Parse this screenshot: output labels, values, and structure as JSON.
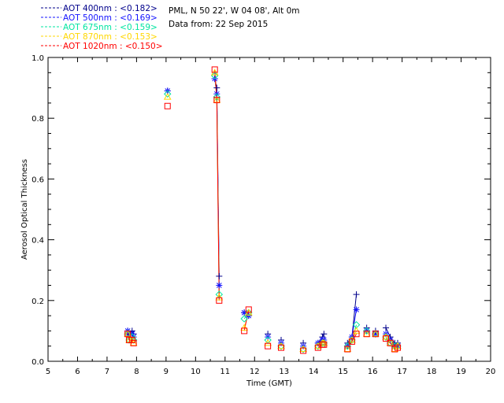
{
  "header": {
    "location": "PML, N 50 22', W 04 08', Alt 0m",
    "date_line": "Data from: 22 Sep 2015"
  },
  "legend": [
    {
      "label": "AOT  400nm : <0.182>",
      "color": "#00008b",
      "marker": "plus"
    },
    {
      "label": "AOT  500nm : <0.169>",
      "color": "#1414ff",
      "marker": "asterisk"
    },
    {
      "label": "AOT  675nm : <0.159>",
      "color": "#00e5a0",
      "marker": "diamond"
    },
    {
      "label": "AOT  870nm : <0.153>",
      "color": "#ffd700",
      "marker": "triangle"
    },
    {
      "label": "AOT 1020nm : <0.150>",
      "color": "#ff0000",
      "marker": "square"
    }
  ],
  "chart_data": {
    "type": "line",
    "title": "",
    "xlabel": "Time (GMT)",
    "ylabel": "Aerosol Optical Thickness",
    "xlim": [
      5,
      20
    ],
    "ylim": [
      0,
      1.0
    ],
    "x_ticks": [
      "5",
      "6",
      "7",
      "8",
      "9",
      "10",
      "11",
      "12",
      "13",
      "14",
      "15",
      "16",
      "17",
      "18",
      "19",
      "20"
    ],
    "y_ticks": [
      "0.0",
      "0.2",
      "0.4",
      "0.6",
      "0.8",
      "1.0"
    ],
    "grid": false,
    "series": [
      {
        "name": "AOT  400nm : <0.182>",
        "color": "#00008b",
        "points": [
          [
            7.7,
            0.1
          ],
          [
            7.75,
            0.09
          ],
          [
            7.85,
            0.1
          ],
          [
            7.9,
            0.09
          ],
          [
            9.05,
            0.89
          ],
          [
            10.65,
            0.93
          ],
          [
            10.72,
            0.9
          ],
          [
            10.8,
            0.28
          ],
          [
            11.65,
            0.16
          ],
          [
            11.8,
            0.15
          ],
          [
            12.45,
            0.09
          ],
          [
            12.9,
            0.07
          ],
          [
            13.65,
            0.06
          ],
          [
            14.15,
            0.06
          ],
          [
            14.3,
            0.08
          ],
          [
            14.35,
            0.09
          ],
          [
            15.15,
            0.06
          ],
          [
            15.3,
            0.08
          ],
          [
            15.45,
            0.22
          ],
          [
            15.8,
            0.11
          ],
          [
            16.1,
            0.1
          ],
          [
            16.45,
            0.11
          ],
          [
            16.6,
            0.08
          ],
          [
            16.75,
            0.06
          ],
          [
            16.85,
            0.06
          ]
        ]
      },
      {
        "name": "AOT  500nm : <0.169>",
        "color": "#1414ff",
        "points": [
          [
            7.7,
            0.1
          ],
          [
            7.75,
            0.08
          ],
          [
            7.85,
            0.09
          ],
          [
            7.9,
            0.08
          ],
          [
            9.05,
            0.89
          ],
          [
            10.65,
            0.93
          ],
          [
            10.72,
            0.88
          ],
          [
            10.8,
            0.25
          ],
          [
            11.65,
            0.16
          ],
          [
            11.8,
            0.15
          ],
          [
            12.45,
            0.08
          ],
          [
            12.9,
            0.06
          ],
          [
            13.65,
            0.05
          ],
          [
            14.15,
            0.06
          ],
          [
            14.3,
            0.07
          ],
          [
            14.35,
            0.07
          ],
          [
            15.15,
            0.05
          ],
          [
            15.3,
            0.08
          ],
          [
            15.45,
            0.17
          ],
          [
            15.8,
            0.1
          ],
          [
            16.1,
            0.09
          ],
          [
            16.45,
            0.09
          ],
          [
            16.6,
            0.07
          ],
          [
            16.75,
            0.05
          ],
          [
            16.85,
            0.05
          ]
        ]
      },
      {
        "name": "AOT  675nm : <0.159>",
        "color": "#00e5a0",
        "points": [
          [
            7.7,
            0.09
          ],
          [
            7.75,
            0.07
          ],
          [
            7.85,
            0.08
          ],
          [
            7.9,
            0.07
          ],
          [
            9.05,
            0.88
          ],
          [
            10.65,
            0.94
          ],
          [
            10.72,
            0.87
          ],
          [
            10.8,
            0.22
          ],
          [
            11.65,
            0.14
          ],
          [
            11.8,
            0.16
          ],
          [
            12.45,
            0.07
          ],
          [
            12.9,
            0.05
          ],
          [
            13.65,
            0.04
          ],
          [
            14.15,
            0.05
          ],
          [
            14.3,
            0.06
          ],
          [
            14.35,
            0.06
          ],
          [
            15.15,
            0.05
          ],
          [
            15.3,
            0.07
          ],
          [
            15.45,
            0.12
          ],
          [
            15.8,
            0.1
          ],
          [
            16.1,
            0.09
          ],
          [
            16.45,
            0.08
          ],
          [
            16.6,
            0.06
          ],
          [
            16.75,
            0.05
          ],
          [
            16.85,
            0.05
          ]
        ]
      },
      {
        "name": "AOT  870nm : <0.153>",
        "color": "#ffd700",
        "points": [
          [
            7.7,
            0.09
          ],
          [
            7.75,
            0.07
          ],
          [
            7.85,
            0.07
          ],
          [
            7.9,
            0.06
          ],
          [
            9.05,
            0.87
          ],
          [
            10.65,
            0.95
          ],
          [
            10.72,
            0.86
          ],
          [
            10.8,
            0.21
          ],
          [
            11.65,
            0.11
          ],
          [
            11.8,
            0.16
          ],
          [
            12.45,
            0.06
          ],
          [
            12.9,
            0.05
          ],
          [
            13.65,
            0.04
          ],
          [
            14.15,
            0.05
          ],
          [
            14.3,
            0.06
          ],
          [
            14.35,
            0.06
          ],
          [
            15.15,
            0.04
          ],
          [
            15.3,
            0.07
          ],
          [
            15.45,
            0.1
          ],
          [
            15.8,
            0.09
          ],
          [
            16.1,
            0.09
          ],
          [
            16.45,
            0.08
          ],
          [
            16.6,
            0.06
          ],
          [
            16.75,
            0.04
          ],
          [
            16.85,
            0.05
          ]
        ]
      },
      {
        "name": "AOT 1020nm : <0.150>",
        "color": "#ff0000",
        "points": [
          [
            7.7,
            0.09
          ],
          [
            7.75,
            0.07
          ],
          [
            7.85,
            0.07
          ],
          [
            7.9,
            0.06
          ],
          [
            9.05,
            0.84
          ],
          [
            10.65,
            0.96
          ],
          [
            10.72,
            0.86
          ],
          [
            10.8,
            0.2
          ],
          [
            11.65,
            0.1
          ],
          [
            11.8,
            0.17
          ],
          [
            12.45,
            0.05
          ],
          [
            12.9,
            0.045
          ],
          [
            13.65,
            0.035
          ],
          [
            14.15,
            0.045
          ],
          [
            14.3,
            0.055
          ],
          [
            14.35,
            0.055
          ],
          [
            15.15,
            0.04
          ],
          [
            15.3,
            0.065
          ],
          [
            15.45,
            0.09
          ],
          [
            15.8,
            0.09
          ],
          [
            16.1,
            0.09
          ],
          [
            16.45,
            0.075
          ],
          [
            16.6,
            0.06
          ],
          [
            16.75,
            0.04
          ],
          [
            16.85,
            0.045
          ]
        ]
      }
    ]
  }
}
